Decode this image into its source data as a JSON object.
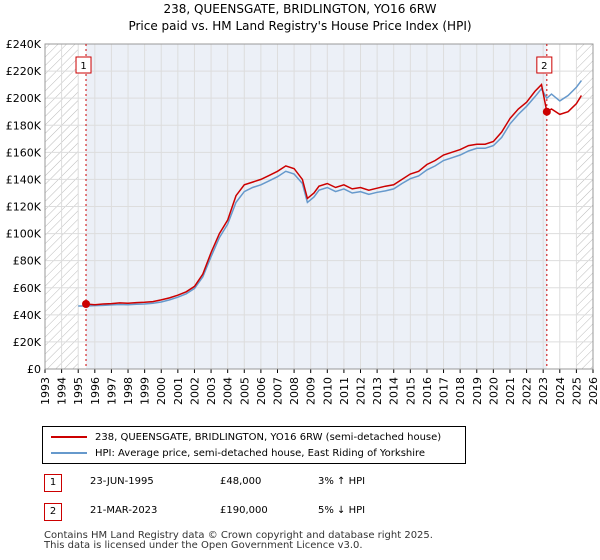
{
  "header": {
    "title": "238, QUEENSGATE, BRIDLINGTON, YO16 6RW",
    "subtitle": "Price paid vs. HM Land Registry's House Price Index (HPI)"
  },
  "colors": {
    "price_line": "#cc0000",
    "hpi_line": "#6699cc",
    "shade": "#dde4f0",
    "marker_border": "#cc0000",
    "grid": "#dddddd"
  },
  "chart_data": {
    "type": "line",
    "title": "Price paid vs. HM Land Registry's House Price Index (HPI)",
    "xlabel": "",
    "ylabel": "",
    "xlim": [
      1993,
      2026
    ],
    "ylim": [
      0,
      240000
    ],
    "x_ticks": [
      1993,
      1994,
      1995,
      1996,
      1997,
      1998,
      1999,
      2000,
      2001,
      2002,
      2003,
      2004,
      2005,
      2006,
      2007,
      2008,
      2009,
      2010,
      2011,
      2012,
      2013,
      2014,
      2015,
      2016,
      2017,
      2018,
      2019,
      2020,
      2021,
      2022,
      2023,
      2024,
      2025,
      2026
    ],
    "y_ticks": [
      0,
      20000,
      40000,
      60000,
      80000,
      100000,
      120000,
      140000,
      160000,
      180000,
      200000,
      220000,
      240000
    ],
    "y_tick_labels": [
      "£0",
      "£20K",
      "£40K",
      "£60K",
      "£80K",
      "£100K",
      "£120K",
      "£140K",
      "£160K",
      "£180K",
      "£200K",
      "£220K",
      "£240K"
    ],
    "hatched_before": 1995.0,
    "hatched_after": 2025.0,
    "series": [
      {
        "name": "238, QUEENSGATE, BRIDLINGTON, YO16 6RW (semi-detached house)",
        "color": "#cc0000",
        "x": [
          1995.47,
          1996.0,
          1996.5,
          1997.0,
          1997.5,
          1998.0,
          1998.5,
          1999.0,
          1999.5,
          2000.0,
          2000.5,
          2001.0,
          2001.5,
          2002.0,
          2002.5,
          2003.0,
          2003.5,
          2004.0,
          2004.5,
          2005.0,
          2005.5,
          2006.0,
          2006.5,
          2007.0,
          2007.5,
          2008.0,
          2008.5,
          2008.8,
          2009.2,
          2009.5,
          2010.0,
          2010.5,
          2011.0,
          2011.5,
          2012.0,
          2012.5,
          2013.0,
          2013.5,
          2014.0,
          2014.5,
          2015.0,
          2015.5,
          2016.0,
          2016.5,
          2017.0,
          2017.5,
          2018.0,
          2018.5,
          2019.0,
          2019.5,
          2020.0,
          2020.5,
          2021.0,
          2021.5,
          2022.0,
          2022.5,
          2022.9,
          2023.22,
          2023.5,
          2024.0,
          2024.5,
          2025.0,
          2025.3
        ],
        "values": [
          48000,
          47500,
          48000,
          48300,
          48800,
          48600,
          49000,
          49300,
          49800,
          51000,
          52500,
          54500,
          57000,
          61000,
          70000,
          86000,
          100000,
          110000,
          128000,
          136000,
          138000,
          140000,
          143000,
          146000,
          150000,
          148000,
          140000,
          126000,
          130000,
          135000,
          137000,
          134000,
          136000,
          133000,
          134000,
          132000,
          133500,
          135000,
          136000,
          140000,
          144000,
          146000,
          151000,
          154000,
          158000,
          160000,
          162000,
          165000,
          166000,
          166000,
          168000,
          175000,
          185000,
          192000,
          197000,
          205000,
          210000,
          190000,
          192000,
          188000,
          190000,
          196000,
          202000
        ]
      },
      {
        "name": "HPI: Average price, semi-detached house, East Riding of Yorkshire",
        "color": "#6699cc",
        "x": [
          1995.0,
          1995.5,
          1996.0,
          1996.5,
          1997.0,
          1997.5,
          1998.0,
          1998.5,
          1999.0,
          1999.5,
          2000.0,
          2000.5,
          2001.0,
          2001.5,
          2002.0,
          2002.5,
          2003.0,
          2003.5,
          2004.0,
          2004.5,
          2005.0,
          2005.5,
          2006.0,
          2006.5,
          2007.0,
          2007.5,
          2008.0,
          2008.5,
          2008.8,
          2009.2,
          2009.5,
          2010.0,
          2010.5,
          2011.0,
          2011.5,
          2012.0,
          2012.5,
          2013.0,
          2013.5,
          2014.0,
          2014.5,
          2015.0,
          2015.5,
          2016.0,
          2016.5,
          2017.0,
          2017.5,
          2018.0,
          2018.5,
          2019.0,
          2019.5,
          2020.0,
          2020.5,
          2021.0,
          2021.5,
          2022.0,
          2022.5,
          2022.9,
          2023.22,
          2023.5,
          2024.0,
          2024.5,
          2025.0,
          2025.3
        ],
        "values": [
          46500,
          46500,
          46800,
          47000,
          47300,
          47600,
          47500,
          47800,
          48000,
          48500,
          49500,
          51000,
          53000,
          55500,
          59500,
          68000,
          83000,
          97000,
          107000,
          123000,
          131000,
          134000,
          136000,
          139000,
          142000,
          146000,
          144000,
          137000,
          123000,
          127000,
          132000,
          134000,
          131000,
          133000,
          130000,
          131000,
          129000,
          130500,
          131500,
          133000,
          137000,
          140500,
          142500,
          147000,
          150000,
          154000,
          156000,
          158000,
          161000,
          163000,
          163000,
          165000,
          171000,
          181000,
          188000,
          194000,
          201000,
          207000,
          200000,
          203000,
          198000,
          202000,
          208000,
          213000
        ]
      }
    ],
    "annotations": [
      {
        "label": "1",
        "x": 1995.47,
        "y": 48000
      },
      {
        "label": "2",
        "x": 2023.22,
        "y": 190000
      }
    ]
  },
  "legend": {
    "price_label": "238, QUEENSGATE, BRIDLINGTON, YO16 6RW (semi-detached house)",
    "hpi_label": "HPI: Average price, semi-detached house, East Riding of Yorkshire"
  },
  "transactions": [
    {
      "num": "1",
      "date": "23-JUN-1995",
      "price": "£48,000",
      "hpi": "3% ↑ HPI"
    },
    {
      "num": "2",
      "date": "21-MAR-2023",
      "price": "£190,000",
      "hpi": "5% ↓ HPI"
    }
  ],
  "footer": {
    "line1": "Contains HM Land Registry data © Crown copyright and database right 2025.",
    "line2": "This data is licensed under the Open Government Licence v3.0."
  }
}
